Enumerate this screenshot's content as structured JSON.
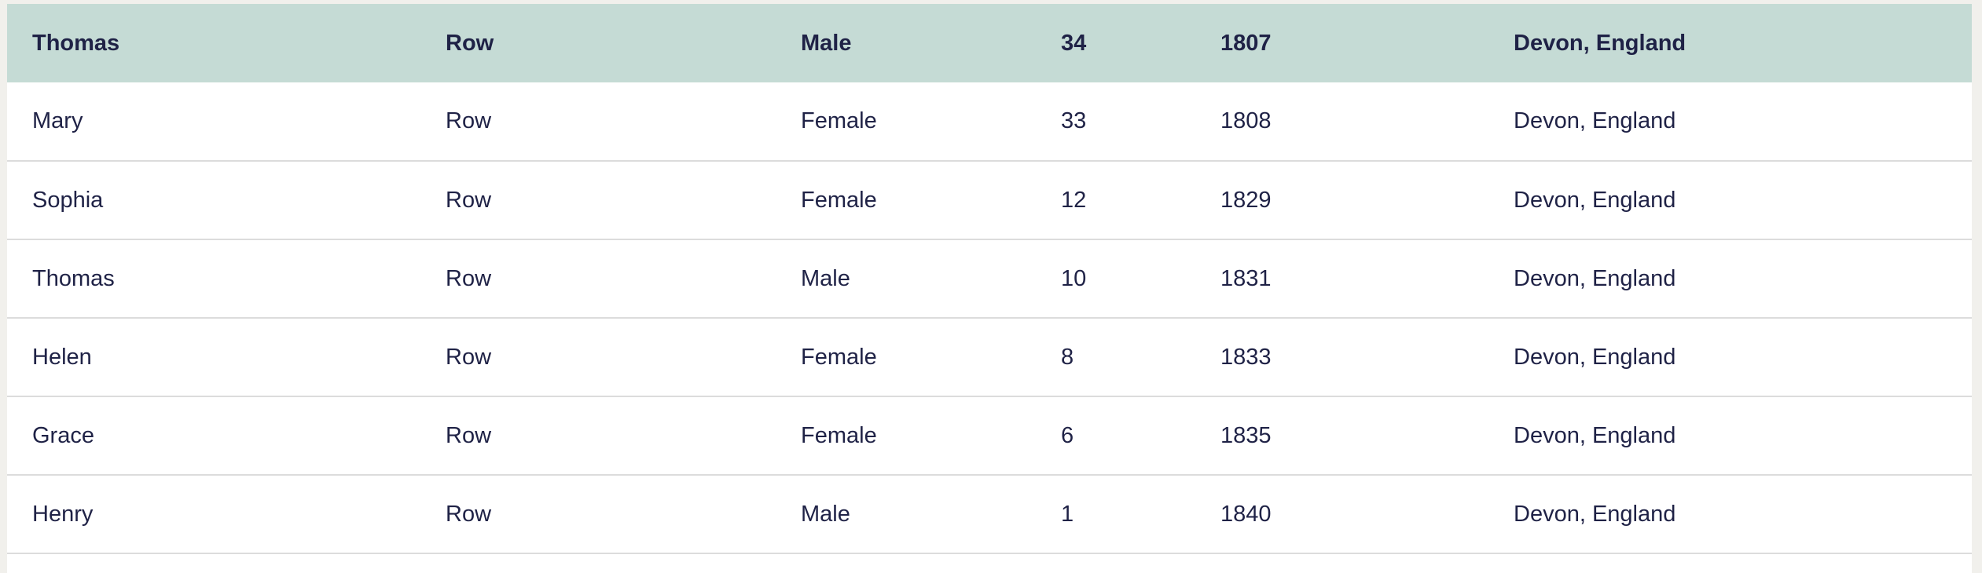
{
  "table": {
    "header_row": {
      "first_name": "Thomas",
      "last_name": "Row",
      "sex": "Male",
      "age": "34",
      "birth_year": "1807",
      "birthplace": "Devon, England"
    },
    "rows": [
      {
        "first_name": "Mary",
        "last_name": "Row",
        "sex": "Female",
        "age": "33",
        "birth_year": "1808",
        "birthplace": "Devon, England"
      },
      {
        "first_name": "Sophia",
        "last_name": "Row",
        "sex": "Female",
        "age": "12",
        "birth_year": "1829",
        "birthplace": "Devon, England"
      },
      {
        "first_name": "Thomas",
        "last_name": "Row",
        "sex": "Male",
        "age": "10",
        "birth_year": "1831",
        "birthplace": "Devon, England"
      },
      {
        "first_name": "Helen",
        "last_name": "Row",
        "sex": "Female",
        "age": "8",
        "birth_year": "1833",
        "birthplace": "Devon, England"
      },
      {
        "first_name": "Grace",
        "last_name": "Row",
        "sex": "Female",
        "age": "6",
        "birth_year": "1835",
        "birthplace": "Devon, England"
      },
      {
        "first_name": "Henry",
        "last_name": "Row",
        "sex": "Male",
        "age": "1",
        "birth_year": "1840",
        "birthplace": "Devon, England"
      }
    ]
  },
  "colors": {
    "header_background": "#c5dbd5",
    "text": "#1f2246",
    "row_divider": "#dcdcdc",
    "page_background": "#f1f0ec"
  }
}
